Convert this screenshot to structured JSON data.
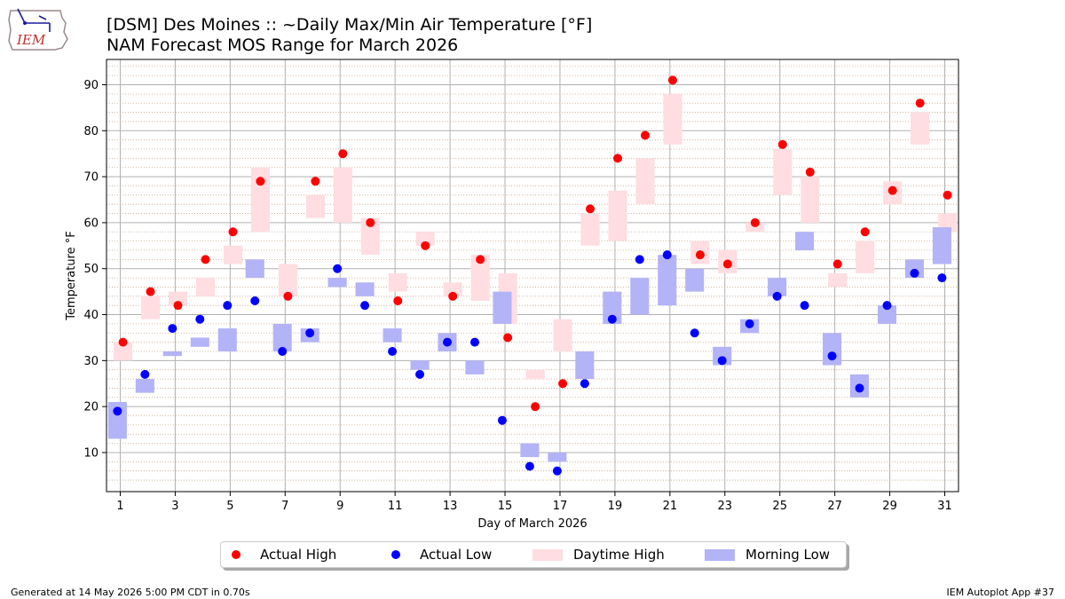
{
  "header": {
    "title": "[DSM] Des Moines :: ~Daily Max/Min Air Temperature [°F]",
    "subtitle": "NAM Forecast MOS Range for March 2026",
    "logo_text": "IEM"
  },
  "footer": {
    "left": "Generated at 14 May 2026 5:00 PM CDT in 0.70s",
    "right": "IEM Autoplot App #37"
  },
  "legend": {
    "items": [
      {
        "label": "Actual High",
        "kind": "dot",
        "color": "#ff0000"
      },
      {
        "label": "Actual Low",
        "kind": "dot",
        "color": "#0000ff"
      },
      {
        "label": "Daytime High",
        "kind": "rect",
        "color": "#ffdde1"
      },
      {
        "label": "Morning Low",
        "kind": "rect",
        "color": "#b3b3f7"
      }
    ]
  },
  "chart_data": {
    "type": "bar",
    "xlabel": "Day of March 2026",
    "ylabel": "Temperature °F",
    "xlim": [
      0.5,
      31.5
    ],
    "ylim": [
      1.5,
      95.5
    ],
    "x_ticks": [
      1,
      3,
      5,
      7,
      9,
      11,
      13,
      15,
      17,
      19,
      21,
      23,
      25,
      27,
      29,
      31
    ],
    "y_ticks": [
      10,
      20,
      30,
      40,
      50,
      60,
      70,
      80,
      90
    ],
    "grid": true,
    "legend_position": "bottom-center",
    "colors": {
      "actual_high": "#ff0000",
      "actual_low": "#0000ff",
      "forecast_high_range": "#ffdde1",
      "forecast_low_range": "#b3b3f7"
    },
    "days": [
      1,
      2,
      3,
      4,
      5,
      6,
      7,
      8,
      9,
      10,
      11,
      12,
      13,
      14,
      15,
      16,
      17,
      18,
      19,
      20,
      21,
      22,
      23,
      24,
      25,
      26,
      27,
      28,
      29,
      30,
      31
    ],
    "actual_high": [
      34,
      45,
      42,
      52,
      58,
      69,
      44,
      69,
      75,
      60,
      43,
      55,
      44,
      52,
      35,
      20,
      25,
      63,
      74,
      79,
      91,
      53,
      51,
      60,
      77,
      71,
      51,
      58,
      67,
      86,
      66
    ],
    "actual_low": [
      19,
      27,
      37,
      39,
      42,
      43,
      32,
      36,
      50,
      42,
      32,
      27,
      34,
      34,
      17,
      7,
      6,
      25,
      39,
      52,
      53,
      36,
      30,
      38,
      44,
      42,
      31,
      24,
      42,
      49,
      48
    ],
    "daytime_high_range": [
      [
        30,
        34
      ],
      [
        39,
        44
      ],
      [
        42,
        45
      ],
      [
        44,
        48
      ],
      [
        51,
        55
      ],
      [
        58,
        72
      ],
      [
        44,
        51
      ],
      [
        61,
        66
      ],
      [
        60,
        72
      ],
      [
        53,
        61
      ],
      [
        45,
        49
      ],
      [
        55,
        58
      ],
      [
        44,
        47
      ],
      [
        43,
        53
      ],
      [
        38,
        49
      ],
      [
        26,
        28
      ],
      [
        32,
        39
      ],
      [
        55,
        62
      ],
      [
        56,
        67
      ],
      [
        64,
        74
      ],
      [
        77,
        88
      ],
      [
        51,
        56
      ],
      [
        49,
        54
      ],
      [
        58,
        60
      ],
      [
        66,
        76
      ],
      [
        60,
        70
      ],
      [
        46,
        49
      ],
      [
        49,
        56
      ],
      [
        64,
        69
      ],
      [
        77,
        84
      ],
      [
        58,
        62
      ]
    ],
    "morning_low_range": [
      [
        13,
        21
      ],
      [
        23,
        26
      ],
      [
        31,
        32
      ],
      [
        33,
        35
      ],
      [
        32,
        37
      ],
      [
        48,
        52
      ],
      [
        32,
        38
      ],
      [
        34,
        37
      ],
      [
        46,
        48
      ],
      [
        44,
        47
      ],
      [
        34,
        37
      ],
      [
        28,
        30
      ],
      [
        32,
        36
      ],
      [
        27,
        30
      ],
      [
        38,
        45
      ],
      [
        9,
        12
      ],
      [
        8,
        10
      ],
      [
        26,
        32
      ],
      [
        38,
        45
      ],
      [
        40,
        48
      ],
      [
        42,
        53
      ],
      [
        45,
        50
      ],
      [
        29,
        33
      ],
      [
        36,
        39
      ],
      [
        44,
        48
      ],
      [
        54,
        58
      ],
      [
        29,
        36
      ],
      [
        22,
        27
      ],
      [
        38,
        42
      ],
      [
        48,
        52
      ],
      [
        51,
        59
      ]
    ]
  }
}
